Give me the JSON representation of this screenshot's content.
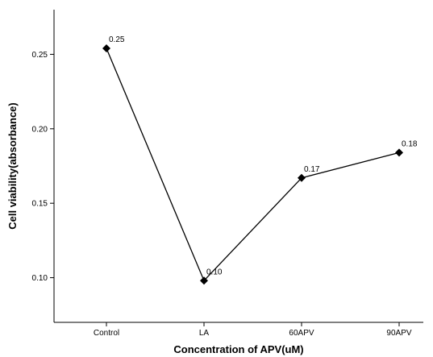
{
  "chart_data": {
    "type": "line",
    "title": "",
    "xlabel": "Concentration of APV(uM)",
    "ylabel": "Cell viability(absorbance)",
    "categories": [
      "Control",
      "LA",
      "60APV",
      "90APV"
    ],
    "series": [
      {
        "values": [
          0.254,
          0.098,
          0.167,
          0.184
        ],
        "data_labels": [
          "0.25",
          "0.10",
          "0.17",
          "0.18"
        ],
        "marker": "diamond",
        "color": "#000000"
      }
    ],
    "yticks": [
      0.1,
      0.15,
      0.2,
      0.25
    ],
    "ytick_labels": [
      "0.10",
      "0.15",
      "0.20",
      "0.25"
    ],
    "ylim": [
      0.07,
      0.28
    ],
    "grid": false,
    "legend": "none"
  }
}
